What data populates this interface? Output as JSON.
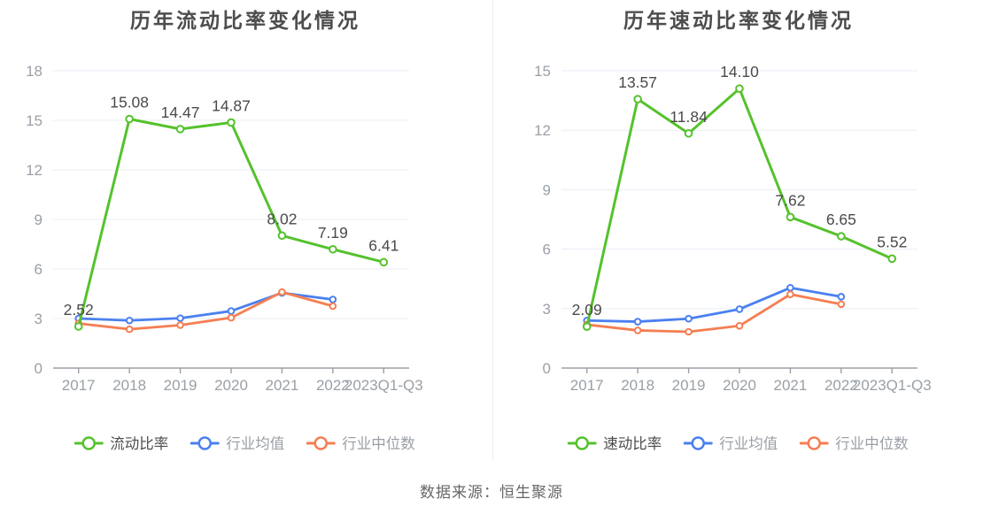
{
  "source_note": "数据来源：恒生聚源",
  "styles": {
    "title_color": "#4d4d4d",
    "axis_color": "#9aa0a6",
    "grid_color": "#e8edf4",
    "data_label_color": "#4a4a4a",
    "legend_muted_color": "#9aa0a6",
    "series_green": "#55c22d",
    "series_blue": "#4a80f0",
    "series_orange": "#f57e52"
  },
  "chart_data": [
    {
      "type": "line",
      "title": "历年流动比率变化情况",
      "categories": [
        "2017",
        "2018",
        "2019",
        "2020",
        "2021",
        "2022",
        "2023Q1-Q3"
      ],
      "ylim": [
        0,
        18
      ],
      "yticks": [
        0,
        3,
        6,
        9,
        12,
        15,
        18
      ],
      "grid": true,
      "legend_position": "bottom",
      "series": [
        {
          "name": "流动比率",
          "color": "#55c22d",
          "values": [
            2.52,
            15.08,
            14.47,
            14.87,
            8.02,
            7.19,
            6.41
          ],
          "labels": [
            "2.52",
            "15.08",
            "14.47",
            "14.87",
            "8.02",
            "7.19",
            "6.41"
          ],
          "show_labels": true,
          "legend_text_color": "#4d4d4d"
        },
        {
          "name": "行业均值",
          "color": "#4a80f0",
          "values": [
            3.0,
            2.88,
            3.02,
            3.45,
            4.55,
            4.15
          ],
          "show_labels": false,
          "legend_text_color": "#9aa0a6"
        },
        {
          "name": "行业中位数",
          "color": "#f57e52",
          "values": [
            2.7,
            2.35,
            2.6,
            3.05,
            4.6,
            3.75
          ],
          "show_labels": false,
          "legend_text_color": "#9aa0a6"
        }
      ]
    },
    {
      "type": "line",
      "title": "历年速动比率变化情况",
      "categories": [
        "2017",
        "2018",
        "2019",
        "2020",
        "2021",
        "2022",
        "2023Q1-Q3"
      ],
      "ylim": [
        0,
        15
      ],
      "yticks": [
        0,
        3,
        6,
        9,
        12,
        15
      ],
      "grid": true,
      "legend_position": "bottom",
      "series": [
        {
          "name": "速动比率",
          "color": "#55c22d",
          "values": [
            2.09,
            13.57,
            11.84,
            14.1,
            7.62,
            6.65,
            5.52
          ],
          "labels": [
            "2.09",
            "13.57",
            "11.84",
            "14.10",
            "7.62",
            "6.65",
            "5.52"
          ],
          "show_labels": true,
          "legend_text_color": "#4d4d4d"
        },
        {
          "name": "行业均值",
          "color": "#4a80f0",
          "values": [
            2.4,
            2.34,
            2.49,
            2.97,
            4.05,
            3.6
          ],
          "show_labels": false,
          "legend_text_color": "#9aa0a6"
        },
        {
          "name": "行业中位数",
          "color": "#f57e52",
          "values": [
            2.19,
            1.9,
            1.83,
            2.13,
            3.72,
            3.22
          ],
          "show_labels": false,
          "legend_text_color": "#9aa0a6"
        }
      ]
    }
  ]
}
